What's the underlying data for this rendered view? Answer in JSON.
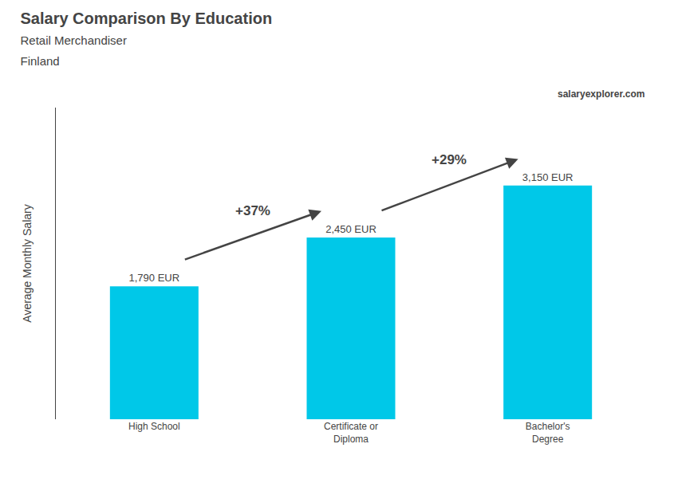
{
  "chart_data": {
    "type": "bar",
    "title": "Salary Comparison By Education",
    "subtitle": [
      "Retail Merchandiser",
      "Finland"
    ],
    "ylabel": "Average Monthly Salary",
    "categories": [
      "High School",
      "Certificate or\nDiploma",
      "Bachelor's\nDegree"
    ],
    "values": [
      1790,
      2450,
      3150
    ],
    "value_labels": [
      "1,790 EUR",
      "2,450 EUR",
      "3,150 EUR"
    ],
    "data_labels": true,
    "color": "#00c8e8",
    "ylim": [
      0,
      4200
    ],
    "tick_labels": "x",
    "grid": false,
    "annotations": [
      {
        "text": "+37%",
        "from": "High School",
        "to": "Certificate or\nDiploma"
      },
      {
        "text": "+29%",
        "from": "Certificate or\nDiploma",
        "to": "Bachelor's\nDegree"
      },
      {
        "text": "salaryexplorer.com"
      }
    ]
  }
}
